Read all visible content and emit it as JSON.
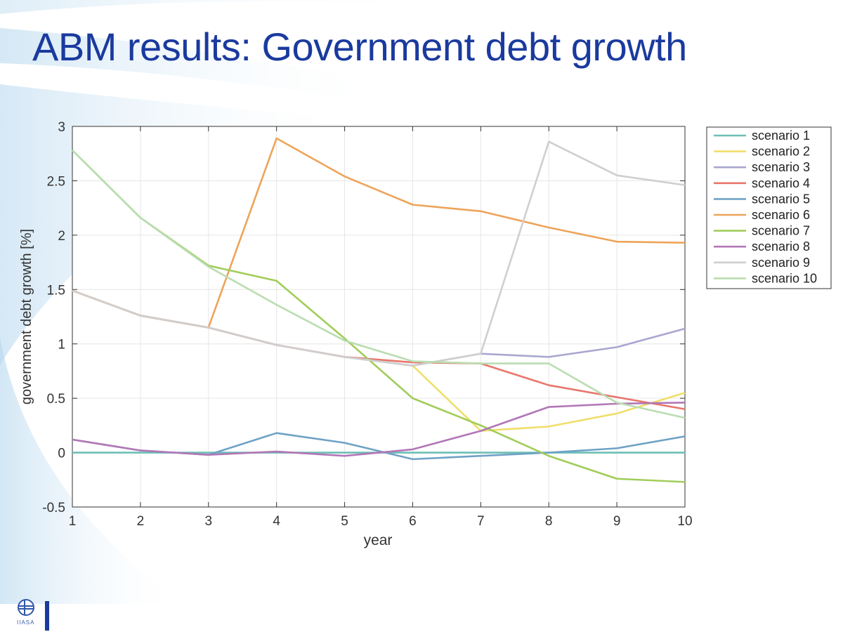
{
  "slide": {
    "title": "ABM results: Government debt growth"
  },
  "logo": {
    "text": "IIASA"
  },
  "chart_data": {
    "type": "line",
    "title": "",
    "xlabel": "year",
    "ylabel": "government debt growth [%]",
    "xlim": [
      1,
      10
    ],
    "ylim": [
      -0.5,
      3
    ],
    "xticks": [
      "1",
      "2",
      "3",
      "4",
      "5",
      "6",
      "7",
      "8",
      "9",
      "10"
    ],
    "yticks": [
      "-0.5",
      "0",
      "0.5",
      "1",
      "1.5",
      "2",
      "2.5",
      "3"
    ],
    "grid": true,
    "legend_position": "outside-right",
    "x": [
      1,
      2,
      3,
      4,
      5,
      6,
      7,
      8,
      9,
      10
    ],
    "series": [
      {
        "name": "scenario 1",
        "color": "#6cbfb5",
        "values": [
          0.0,
          0.0,
          0.0,
          0.0,
          0.0,
          0.0,
          0.0,
          0.0,
          0.0,
          0.0
        ]
      },
      {
        "name": "scenario 2",
        "color": "#f0df6a",
        "values": [
          1.49,
          1.26,
          1.15,
          0.99,
          0.88,
          0.8,
          0.2,
          0.24,
          0.36,
          0.55
        ]
      },
      {
        "name": "scenario 3",
        "color": "#a9a7cf",
        "values": [
          1.49,
          1.26,
          1.15,
          0.99,
          0.88,
          0.8,
          0.91,
          0.88,
          0.97,
          1.14
        ]
      },
      {
        "name": "scenario 4",
        "color": "#e8766c",
        "values": [
          1.49,
          1.26,
          1.15,
          0.99,
          0.88,
          0.83,
          0.82,
          0.62,
          0.51,
          0.4
        ]
      },
      {
        "name": "scenario 5",
        "color": "#6fa2c6",
        "values": [
          0.12,
          0.02,
          -0.02,
          0.18,
          0.09,
          -0.06,
          -0.03,
          0.0,
          0.04,
          0.15
        ]
      },
      {
        "name": "scenario 6",
        "color": "#eda45a",
        "values": [
          1.49,
          1.26,
          1.15,
          2.89,
          2.54,
          2.28,
          2.22,
          2.07,
          1.94,
          1.93
        ]
      },
      {
        "name": "scenario 7",
        "color": "#a1cd5a",
        "values": [
          2.78,
          2.16,
          1.72,
          1.58,
          1.05,
          0.5,
          0.25,
          -0.03,
          -0.24,
          -0.27
        ]
      },
      {
        "name": "scenario 8",
        "color": "#b277b7",
        "values": [
          0.12,
          0.02,
          -0.02,
          0.01,
          -0.03,
          0.03,
          0.2,
          0.42,
          0.45,
          0.46
        ]
      },
      {
        "name": "scenario 9",
        "color": "#cfcfcf",
        "values": [
          1.49,
          1.26,
          1.15,
          0.99,
          0.88,
          0.8,
          0.91,
          2.86,
          2.55,
          2.46
        ]
      },
      {
        "name": "scenario 10",
        "color": "#b9ddb0",
        "values": [
          2.78,
          2.16,
          1.71,
          1.36,
          1.03,
          0.84,
          0.82,
          0.82,
          0.46,
          0.32
        ]
      }
    ]
  }
}
